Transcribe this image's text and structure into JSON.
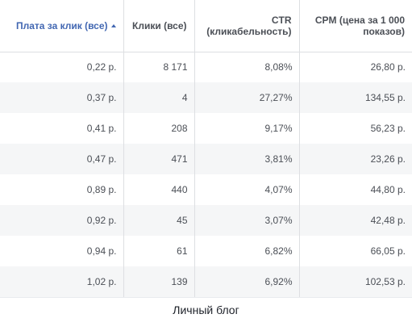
{
  "table": {
    "headers": [
      {
        "label": "Плата за клик (все)"
      },
      {
        "label": "Клики (все)"
      },
      {
        "label": "CTR (кликабельность)"
      },
      {
        "label": "CPM (цена за 1 000 показов)"
      }
    ],
    "rows": [
      {
        "cpc": "0,22 р.",
        "clicks": "8 171",
        "ctr": "8,08%",
        "cpm": "26,80 р."
      },
      {
        "cpc": "0,37 р.",
        "clicks": "4",
        "ctr": "27,27%",
        "cpm": "134,55 р."
      },
      {
        "cpc": "0,41 р.",
        "clicks": "208",
        "ctr": "9,17%",
        "cpm": "56,23 р."
      },
      {
        "cpc": "0,47 р.",
        "clicks": "471",
        "ctr": "3,81%",
        "cpm": "23,26 р."
      },
      {
        "cpc": "0,89 р.",
        "clicks": "440",
        "ctr": "4,07%",
        "cpm": "44,80 р."
      },
      {
        "cpc": "0,92 р.",
        "clicks": "45",
        "ctr": "3,07%",
        "cpm": "42,48 р."
      },
      {
        "cpc": "0,94 р.",
        "clicks": "61",
        "ctr": "6,82%",
        "cpm": "66,05 р."
      },
      {
        "cpc": "1,02 р.",
        "clicks": "139",
        "ctr": "6,92%",
        "cpm": "102,53 р."
      }
    ]
  },
  "caption": "Личный блог",
  "colors": {
    "accent": "#4267b2",
    "stripe": "#f5f6f7",
    "border": "#dddfe2"
  }
}
